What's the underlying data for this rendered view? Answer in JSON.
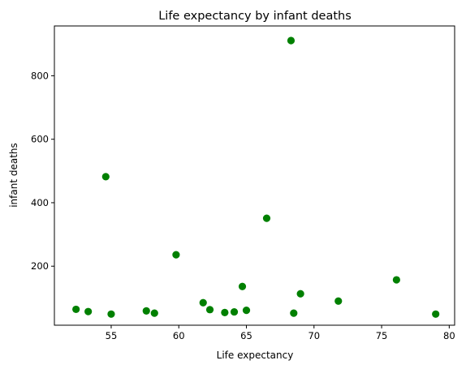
{
  "chart_data": {
    "type": "scatter",
    "title": "Life expectancy by infant deaths",
    "xlabel": "Life expectancy",
    "ylabel": "infant deaths",
    "xlim": [
      50.8,
      80.4
    ],
    "ylim": [
      14,
      957
    ],
    "xticks": [
      55,
      60,
      65,
      70,
      75,
      80
    ],
    "yticks": [
      200,
      400,
      600,
      800
    ],
    "grid": false,
    "marker_color": "#008000",
    "points": [
      {
        "x": 52.4,
        "y": 64
      },
      {
        "x": 53.3,
        "y": 57
      },
      {
        "x": 54.6,
        "y": 482
      },
      {
        "x": 55.0,
        "y": 49
      },
      {
        "x": 57.6,
        "y": 59
      },
      {
        "x": 58.2,
        "y": 52
      },
      {
        "x": 59.8,
        "y": 236
      },
      {
        "x": 61.8,
        "y": 85
      },
      {
        "x": 62.3,
        "y": 63
      },
      {
        "x": 63.4,
        "y": 54
      },
      {
        "x": 64.1,
        "y": 56
      },
      {
        "x": 64.7,
        "y": 136
      },
      {
        "x": 65.0,
        "y": 61
      },
      {
        "x": 66.5,
        "y": 351
      },
      {
        "x": 68.3,
        "y": 911
      },
      {
        "x": 68.5,
        "y": 52
      },
      {
        "x": 69.0,
        "y": 113
      },
      {
        "x": 71.8,
        "y": 90
      },
      {
        "x": 76.1,
        "y": 157
      },
      {
        "x": 79.0,
        "y": 49
      }
    ]
  }
}
